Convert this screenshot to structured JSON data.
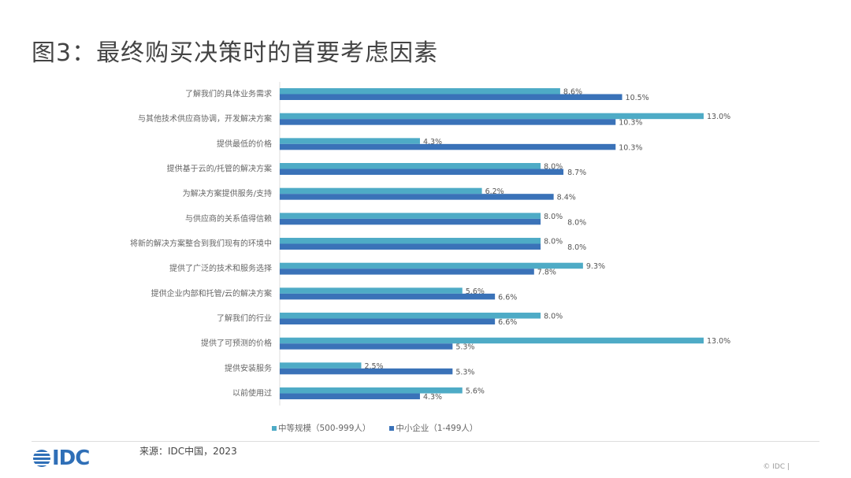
{
  "title": "图3：最终购买决策时的首要考虑因素",
  "chart_data": {
    "type": "bar",
    "orientation": "horizontal",
    "categories": [
      "了解我们的具体业务需求",
      "与其他技术供应商协调，开发解决方案",
      "提供最低的价格",
      "提供基于云的/托管的解决方案",
      "为解决方案提供服务/支持",
      "与供应商的关系值得信赖",
      "将新的解决方案整合到我们现有的环境中",
      "提供了广泛的技术和服务选择",
      "提供企业内部和托管/云的解决方案",
      "了解我们的行业",
      "提供了可预测的价格",
      "提供安装服务",
      "以前使用过"
    ],
    "series": [
      {
        "name": "中等规模（500-999人）",
        "color": "#4eabc6",
        "values": [
          8.6,
          13.0,
          4.3,
          8.0,
          6.2,
          8.0,
          8.0,
          9.3,
          5.6,
          8.0,
          13.0,
          2.5,
          5.6
        ]
      },
      {
        "name": "中小企业（1-499人）",
        "color": "#3a72b8",
        "values": [
          10.5,
          10.3,
          10.3,
          8.7,
          8.4,
          8.0,
          8.0,
          7.8,
          6.6,
          6.6,
          5.3,
          5.3,
          4.3
        ]
      }
    ],
    "value_format": "percent_1dp",
    "xlim": [
      0,
      13
    ],
    "grid": false,
    "legend": "bottom"
  },
  "source": "来源：IDC中国，2023",
  "logo": "IDC",
  "copyright": "© IDC |"
}
